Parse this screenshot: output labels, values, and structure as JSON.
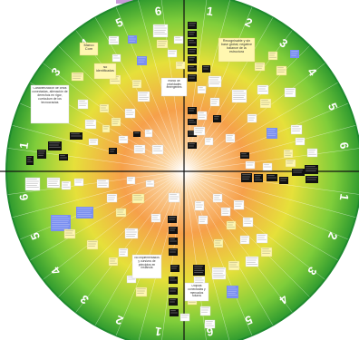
{
  "colors": {
    "rim": "#1f8a2e",
    "outer": "#4fbf3a",
    "mid": "#e6e03a",
    "inner": "#f6a04a",
    "core": "#ffffff",
    "axis": "#111111",
    "note_yellow": "#fff7b0",
    "note_white": "#ffffff",
    "note_blue": "#7a8ff0",
    "note_black": "#111111",
    "tab": "#c89ad8"
  },
  "rings": {
    "top_right": [
      "1",
      "2",
      "3",
      "4",
      "5",
      "6"
    ],
    "right_bottom": [
      "1",
      "2",
      "3",
      "4",
      "5",
      "6"
    ],
    "bottom_left": [
      "1",
      "2",
      "3",
      "4",
      "5",
      "6"
    ],
    "left_top": [
      "1",
      "2",
      "3",
      "4",
      "5",
      "6"
    ]
  },
  "labels": {
    "tr_heading": "Recognisable y sin base global, negative balance de la estructura",
    "tl_heading_a": "Marco Com",
    "tl_heading_b": "No identificadas",
    "center_top": "marco de prioridades emergentes",
    "left_block": "Caracterización de crisis conectadas, alienación de derechos en rigor, curriculum de los tecnocracias",
    "bottom_center": "No implementados y cursivos de principios en instancia",
    "bottom_right": "Utopias conectadas y mercados futuros"
  }
}
